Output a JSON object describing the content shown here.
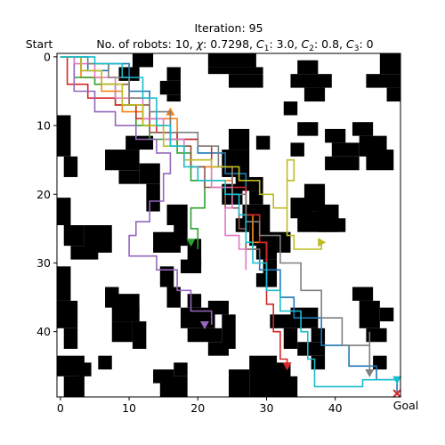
{
  "title_line1": "Iteration: 95",
  "title_line2_prefix": "No. of robots: 10, ",
  "params": [
    {
      "sym": "χ",
      "sub": "",
      "value": "0.7298"
    },
    {
      "sym": "C",
      "sub": "1",
      "value": "3.0"
    },
    {
      "sym": "C",
      "sub": "2",
      "value": "0.8"
    },
    {
      "sym": "C",
      "sub": "3",
      "value": "0"
    }
  ],
  "start_label": "Start",
  "goal_label": "Goal",
  "chart_data": {
    "type": "grid-path",
    "grid_size": [
      50,
      50
    ],
    "xlim": [
      -0.5,
      49.5
    ],
    "ylim": [
      49.5,
      -0.5
    ],
    "x_ticks": [
      0,
      10,
      20,
      30,
      40
    ],
    "y_ticks": [
      0,
      10,
      20,
      30,
      40
    ],
    "goal": [
      49,
      49
    ],
    "colors": [
      "#1f77b4",
      "#ff7f0e",
      "#2ca02c",
      "#d62728",
      "#9467bd",
      "#8c564b",
      "#e377c2",
      "#7f7f7f",
      "#bcbd22",
      "#17becf"
    ],
    "obstacles": [
      [
        22,
        0,
        7,
        2
      ],
      [
        22,
        2,
        8,
        1
      ],
      [
        25,
        3,
        5,
        2
      ],
      [
        47,
        0,
        3,
        3
      ],
      [
        45,
        3,
        5,
        2
      ],
      [
        48,
        5,
        2,
        2
      ],
      [
        11,
        0,
        3,
        2
      ],
      [
        9,
        2,
        3,
        2
      ],
      [
        35,
        1,
        3,
        2
      ],
      [
        34,
        3,
        6,
        2
      ],
      [
        36,
        5,
        3,
        2
      ],
      [
        16,
        2,
        2,
        2
      ],
      [
        15,
        4,
        3,
        2
      ],
      [
        16,
        6,
        2,
        1
      ],
      [
        0,
        9,
        2,
        6
      ],
      [
        1,
        15,
        2,
        3
      ],
      [
        33,
        7,
        2,
        2
      ],
      [
        7,
        14,
        5,
        3
      ],
      [
        10,
        12,
        4,
        2
      ],
      [
        9,
        17,
        3,
        2
      ],
      [
        12,
        16,
        3,
        3
      ],
      [
        13,
        19,
        2,
        4
      ],
      [
        25,
        11,
        3,
        3
      ],
      [
        24,
        14,
        4,
        4
      ],
      [
        26,
        18,
        4,
        2
      ],
      [
        28,
        20,
        2,
        2
      ],
      [
        39,
        11,
        3,
        2
      ],
      [
        40,
        13,
        4,
        2
      ],
      [
        43,
        10,
        3,
        2
      ],
      [
        44,
        12,
        4,
        3
      ],
      [
        39,
        15,
        5,
        2
      ],
      [
        45,
        14,
        4,
        3
      ],
      [
        35,
        10,
        3,
        2
      ],
      [
        34,
        13,
        2,
        2
      ],
      [
        29,
        12,
        2,
        2
      ],
      [
        24,
        19,
        3,
        3
      ],
      [
        27,
        22,
        4,
        3
      ],
      [
        28,
        25,
        3,
        3
      ],
      [
        26,
        24,
        2,
        2
      ],
      [
        0,
        21,
        2,
        4
      ],
      [
        1,
        25,
        3,
        3
      ],
      [
        4,
        25,
        4,
        4
      ],
      [
        2,
        28,
        4,
        2
      ],
      [
        16,
        22,
        3,
        3
      ],
      [
        17,
        25,
        2,
        3
      ],
      [
        14,
        26,
        4,
        3
      ],
      [
        19,
        27,
        2,
        4
      ],
      [
        18,
        30,
        3,
        2
      ],
      [
        34,
        21,
        3,
        3
      ],
      [
        36,
        19,
        3,
        4
      ],
      [
        35,
        23,
        5,
        3
      ],
      [
        38,
        22,
        3,
        4
      ],
      [
        40,
        24,
        2,
        2
      ],
      [
        29,
        26,
        3,
        4
      ],
      [
        30,
        30,
        2,
        2
      ],
      [
        29,
        32,
        3,
        2
      ],
      [
        32,
        26,
        2,
        3
      ],
      [
        15,
        31,
        2,
        3
      ],
      [
        16,
        34,
        2,
        3
      ],
      [
        0,
        31,
        2,
        5
      ],
      [
        0,
        36,
        3,
        4
      ],
      [
        1,
        40,
        2,
        3
      ],
      [
        7,
        34,
        2,
        3
      ],
      [
        8,
        35,
        4,
        4
      ],
      [
        10,
        37,
        2,
        2
      ],
      [
        11,
        39,
        2,
        4
      ],
      [
        8,
        39,
        3,
        3
      ],
      [
        19,
        35,
        2,
        2
      ],
      [
        18,
        37,
        5,
        3
      ],
      [
        19,
        40,
        5,
        2
      ],
      [
        22,
        36,
        3,
        2
      ],
      [
        24,
        38,
        2,
        5
      ],
      [
        22,
        42,
        3,
        2
      ],
      [
        31,
        38,
        3,
        2
      ],
      [
        34,
        37,
        4,
        3
      ],
      [
        33,
        40,
        2,
        3
      ],
      [
        35,
        42,
        4,
        2
      ],
      [
        37,
        40,
        2,
        2
      ],
      [
        43,
        34,
        3,
        2
      ],
      [
        44,
        36,
        3,
        4
      ],
      [
        45,
        40,
        3,
        2
      ],
      [
        47,
        37,
        2,
        2
      ],
      [
        0,
        44,
        4,
        3
      ],
      [
        1,
        47,
        3,
        3
      ],
      [
        3,
        45,
        2,
        2
      ],
      [
        15,
        47,
        4,
        3
      ],
      [
        14,
        46,
        3,
        2
      ],
      [
        17,
        45,
        2,
        2
      ],
      [
        25,
        46,
        3,
        4
      ],
      [
        28,
        44,
        4,
        6
      ],
      [
        31,
        45,
        3,
        5
      ],
      [
        33,
        47,
        2,
        3
      ],
      [
        6,
        44,
        2,
        2
      ],
      [
        37,
        44,
        2,
        2
      ],
      [
        46,
        44,
        2,
        2
      ]
    ],
    "paths": [
      {
        "points": [
          [
            0,
            0
          ],
          [
            4,
            2
          ],
          [
            7,
            1
          ],
          [
            10,
            5
          ],
          [
            13,
            9
          ],
          [
            16,
            12
          ],
          [
            20,
            14
          ],
          [
            24,
            17
          ],
          [
            27,
            20
          ],
          [
            27,
            24
          ],
          [
            28,
            28
          ],
          [
            29,
            31
          ],
          [
            32,
            35
          ],
          [
            34,
            38
          ],
          [
            38,
            42
          ],
          [
            42,
            45
          ],
          [
            46,
            47
          ],
          [
            49,
            49
          ]
        ]
      },
      {
        "points": [
          [
            0,
            0
          ],
          [
            3,
            3
          ],
          [
            6,
            5
          ],
          [
            9,
            8
          ],
          [
            12,
            10
          ],
          [
            15,
            9
          ],
          [
            17,
            13
          ],
          [
            19,
            16
          ],
          [
            22,
            18
          ],
          [
            25,
            20
          ],
          [
            27,
            23
          ],
          [
            28,
            27
          ],
          [
            30,
            30
          ]
        ],
        "end": [
          16,
          8
        ],
        "end_marker": "tri_up"
      },
      {
        "points": [
          [
            0,
            0
          ],
          [
            2,
            3
          ],
          [
            5,
            4
          ],
          [
            8,
            7
          ],
          [
            11,
            10
          ],
          [
            13,
            12
          ],
          [
            17,
            14
          ],
          [
            19,
            18
          ],
          [
            21,
            22
          ],
          [
            19,
            25
          ],
          [
            20,
            28
          ]
        ],
        "end": [
          19,
          27
        ],
        "end_marker": "tri_down"
      },
      {
        "points": [
          [
            0,
            0
          ],
          [
            1,
            4
          ],
          [
            4,
            6
          ],
          [
            8,
            7
          ],
          [
            11,
            9
          ],
          [
            14,
            11
          ],
          [
            17,
            12
          ],
          [
            20,
            13
          ],
          [
            22,
            16
          ],
          [
            25,
            19
          ],
          [
            27,
            23
          ],
          [
            29,
            27
          ],
          [
            30,
            32
          ],
          [
            30,
            36
          ],
          [
            31,
            40
          ],
          [
            32,
            44
          ],
          [
            33,
            45
          ]
        ],
        "end": [
          33,
          45
        ],
        "end_marker": "tri_down"
      },
      {
        "points": [
          [
            0,
            0
          ],
          [
            2,
            5
          ],
          [
            5,
            8
          ],
          [
            8,
            10
          ],
          [
            11,
            12
          ],
          [
            14,
            14
          ],
          [
            16,
            17
          ],
          [
            15,
            21
          ],
          [
            13,
            24
          ],
          [
            11,
            26
          ],
          [
            10,
            29
          ],
          [
            14,
            31
          ],
          [
            17,
            34
          ],
          [
            19,
            37
          ],
          [
            22,
            39
          ]
        ],
        "end": [
          21,
          39
        ],
        "end_marker": "tri_down"
      },
      {
        "points": [
          [
            0,
            0
          ],
          [
            3,
            2
          ],
          [
            6,
            4
          ],
          [
            10,
            7
          ],
          [
            13,
            11
          ],
          [
            16,
            13
          ],
          [
            19,
            16
          ],
          [
            21,
            19
          ],
          [
            24,
            22
          ],
          [
            26,
            25
          ],
          [
            27,
            28
          ],
          [
            29,
            29
          ]
        ]
      },
      {
        "points": [
          [
            0,
            0
          ],
          [
            2,
            1
          ],
          [
            5,
            3
          ],
          [
            8,
            6
          ],
          [
            12,
            9
          ],
          [
            15,
            12
          ],
          [
            18,
            15
          ],
          [
            22,
            19
          ],
          [
            25,
            22
          ],
          [
            24,
            26
          ],
          [
            26,
            28
          ],
          [
            27,
            31
          ]
        ]
      },
      {
        "points": [
          [
            0,
            0
          ],
          [
            4,
            1
          ],
          [
            7,
            3
          ],
          [
            10,
            6
          ],
          [
            13,
            8
          ],
          [
            16,
            11
          ],
          [
            20,
            13
          ],
          [
            23,
            16
          ],
          [
            25,
            20
          ],
          [
            27,
            24
          ],
          [
            29,
            26
          ],
          [
            32,
            30
          ],
          [
            35,
            34
          ],
          [
            38,
            38
          ],
          [
            41,
            42
          ],
          [
            45,
            40
          ],
          [
            45,
            46
          ]
        ],
        "end": [
          45,
          46
        ],
        "end_marker": "tri_down"
      },
      {
        "points": [
          [
            0,
            0
          ],
          [
            3,
            2
          ],
          [
            6,
            4
          ],
          [
            9,
            7
          ],
          [
            12,
            10
          ],
          [
            15,
            13
          ],
          [
            18,
            15
          ],
          [
            22,
            16
          ],
          [
            26,
            18
          ],
          [
            29,
            20
          ],
          [
            31,
            22
          ],
          [
            33,
            18
          ],
          [
            34,
            15
          ],
          [
            33,
            21
          ],
          [
            33,
            26
          ],
          [
            34,
            28
          ],
          [
            38,
            27
          ]
        ],
        "end": [
          38,
          27
        ],
        "end_marker": "tri_right"
      },
      {
        "points": [
          [
            0,
            0
          ],
          [
            5,
            1
          ],
          [
            9,
            3
          ],
          [
            12,
            6
          ],
          [
            14,
            10
          ],
          [
            16,
            13
          ],
          [
            18,
            16
          ],
          [
            20,
            18
          ],
          [
            24,
            20
          ],
          [
            26,
            23
          ],
          [
            27,
            27
          ],
          [
            28,
            30
          ],
          [
            30,
            34
          ],
          [
            32,
            37
          ],
          [
            35,
            40
          ],
          [
            36,
            44
          ],
          [
            37,
            48
          ],
          [
            41,
            48
          ],
          [
            44,
            47
          ],
          [
            49,
            47
          ]
        ],
        "end": [
          49,
          47
        ],
        "end_marker": "tri_down"
      }
    ]
  }
}
